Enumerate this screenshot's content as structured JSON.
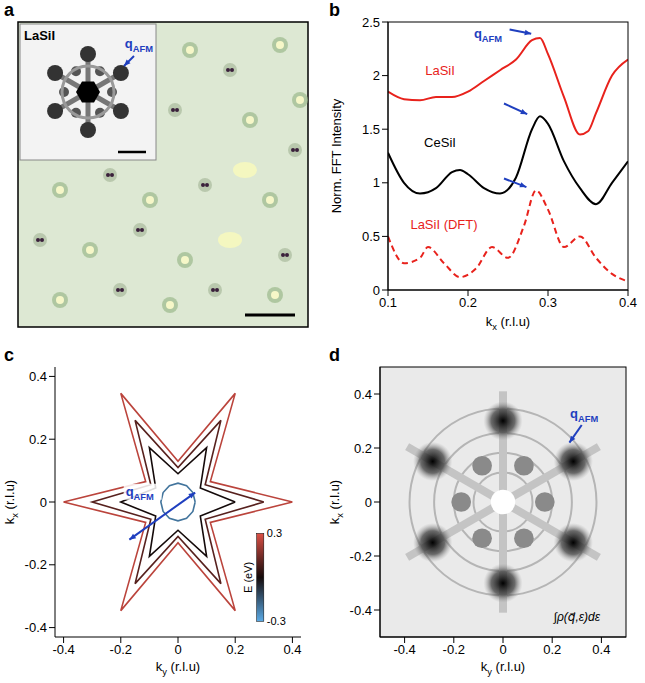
{
  "chart_data": [
    {
      "type": "image",
      "panel": "a",
      "inset_title": "LaSiI",
      "annotation": {
        "text": "q",
        "subscript": "AFM"
      }
    },
    {
      "type": "line",
      "panel": "b",
      "x_label": {
        "text": "k",
        "subscript": "x",
        "suffix": " (r.l.u)"
      },
      "y_label": "Norm. FFT Intensity",
      "xlim": [
        0.1,
        0.4
      ],
      "ylim": [
        0,
        2.5
      ],
      "xticks": [
        0.1,
        0.2,
        0.3,
        0.4
      ],
      "yticks": [
        0,
        0.5,
        1,
        1.5,
        2,
        2.5
      ],
      "annotation": {
        "text": "q",
        "subscript": "AFM"
      },
      "series": [
        {
          "name": "LaSiI",
          "color": "#e8221c",
          "line_style": "solid",
          "x": [
            0.1,
            0.12,
            0.14,
            0.16,
            0.18,
            0.2,
            0.22,
            0.24,
            0.26,
            0.28,
            0.29,
            0.3,
            0.32,
            0.34,
            0.35,
            0.36,
            0.38,
            0.4
          ],
          "values": [
            1.85,
            1.78,
            1.77,
            1.8,
            1.8,
            1.85,
            1.95,
            2.05,
            2.15,
            2.33,
            2.35,
            2.2,
            1.8,
            1.45,
            1.48,
            1.65,
            2.0,
            2.15
          ]
        },
        {
          "name": "CeSiI",
          "color": "#000000",
          "line_style": "solid",
          "x": [
            0.1,
            0.12,
            0.14,
            0.16,
            0.18,
            0.19,
            0.2,
            0.22,
            0.24,
            0.26,
            0.28,
            0.29,
            0.3,
            0.32,
            0.34,
            0.36,
            0.38,
            0.4
          ],
          "values": [
            1.28,
            1.0,
            0.9,
            0.95,
            1.1,
            1.12,
            1.08,
            0.95,
            0.9,
            1.05,
            1.5,
            1.62,
            1.55,
            1.2,
            0.95,
            0.8,
            1.0,
            1.2
          ]
        },
        {
          "name": "LaSiI (DFT)",
          "color": "#e8221c",
          "line_style": "dashed",
          "x": [
            0.1,
            0.12,
            0.14,
            0.15,
            0.17,
            0.19,
            0.21,
            0.23,
            0.25,
            0.27,
            0.285,
            0.3,
            0.32,
            0.34,
            0.36,
            0.38,
            0.4
          ],
          "values": [
            0.5,
            0.25,
            0.3,
            0.4,
            0.25,
            0.12,
            0.2,
            0.4,
            0.3,
            0.6,
            0.93,
            0.75,
            0.4,
            0.5,
            0.3,
            0.15,
            0.08
          ]
        }
      ]
    },
    {
      "type": "contour",
      "panel": "c",
      "x_label": {
        "text": "k",
        "subscript": "y",
        "suffix": " (r.l.u)"
      },
      "y_label": {
        "text": "k",
        "subscript": "x",
        "suffix": " (r.l.u)"
      },
      "xlim": [
        -0.43,
        0.43
      ],
      "ylim": [
        -0.43,
        0.43
      ],
      "xticks": [
        -0.4,
        -0.2,
        0,
        0.2,
        0.4
      ],
      "yticks": [
        -0.4,
        -0.2,
        0,
        0.2,
        0.4
      ],
      "annotation": {
        "text": "q",
        "subscript": "AFM"
      },
      "colorbar": {
        "label": "E (eV)",
        "range": [
          -0.3,
          0.3
        ],
        "ticks": [
          -0.3,
          0.3
        ]
      },
      "contours": [
        {
          "energy": 0.25,
          "x": [
            0.4,
            0.113,
            0.2,
            0,
            -0.2,
            -0.113,
            -0.4,
            -0.113,
            -0.2,
            0,
            0.2,
            0.113,
            0.4
          ],
          "y": [
            0,
            0.065,
            0.346,
            0.13,
            0.346,
            0.065,
            0,
            -0.065,
            -0.346,
            -0.13,
            -0.346,
            -0.065,
            0
          ]
        },
        {
          "energy": 0.1,
          "x": [
            0.3,
            0.095,
            0.15,
            0,
            -0.15,
            -0.095,
            -0.3,
            -0.095,
            -0.15,
            0,
            0.15,
            0.095,
            0.3
          ],
          "y": [
            0,
            0.055,
            0.26,
            0.11,
            0.26,
            0.055,
            0,
            -0.055,
            -0.26,
            -0.11,
            -0.26,
            -0.055,
            0
          ]
        },
        {
          "energy": 0,
          "x": [
            0.2,
            0.078,
            0.1,
            0,
            -0.1,
            -0.078,
            -0.2,
            -0.078,
            -0.1,
            0,
            0.1,
            0.078,
            0.2
          ],
          "y": [
            0,
            0.045,
            0.173,
            0.09,
            0.173,
            0.045,
            0,
            -0.045,
            -0.173,
            -0.09,
            -0.173,
            -0.045,
            0
          ]
        },
        {
          "energy": -0.2,
          "x": [
            0.06,
            0.052,
            0.03,
            0,
            -0.03,
            -0.052,
            -0.06,
            -0.052,
            -0.03,
            0,
            0.03,
            0.052,
            0.06
          ],
          "y": [
            0,
            0.03,
            0.052,
            0.06,
            0.052,
            0.03,
            0,
            -0.03,
            -0.052,
            -0.06,
            -0.052,
            -0.03,
            0
          ]
        }
      ]
    },
    {
      "type": "image",
      "panel": "d",
      "x_label": {
        "text": "k",
        "subscript": "y",
        "suffix": " (r.l.u)"
      },
      "y_label": {
        "text": "k",
        "subscript": "x",
        "suffix": " (r.l.u)"
      },
      "xlim": [
        -0.5,
        0.5
      ],
      "ylim": [
        -0.5,
        0.5
      ],
      "xticks": [
        -0.4,
        -0.2,
        0,
        0.2,
        0.4
      ],
      "yticks": [
        -0.4,
        -0.2,
        0,
        0.2,
        0.4
      ],
      "annotation": {
        "text": "q",
        "subscript": "AFM"
      },
      "formula": "∫ρ(q⃗,ε)dε"
    }
  ]
}
